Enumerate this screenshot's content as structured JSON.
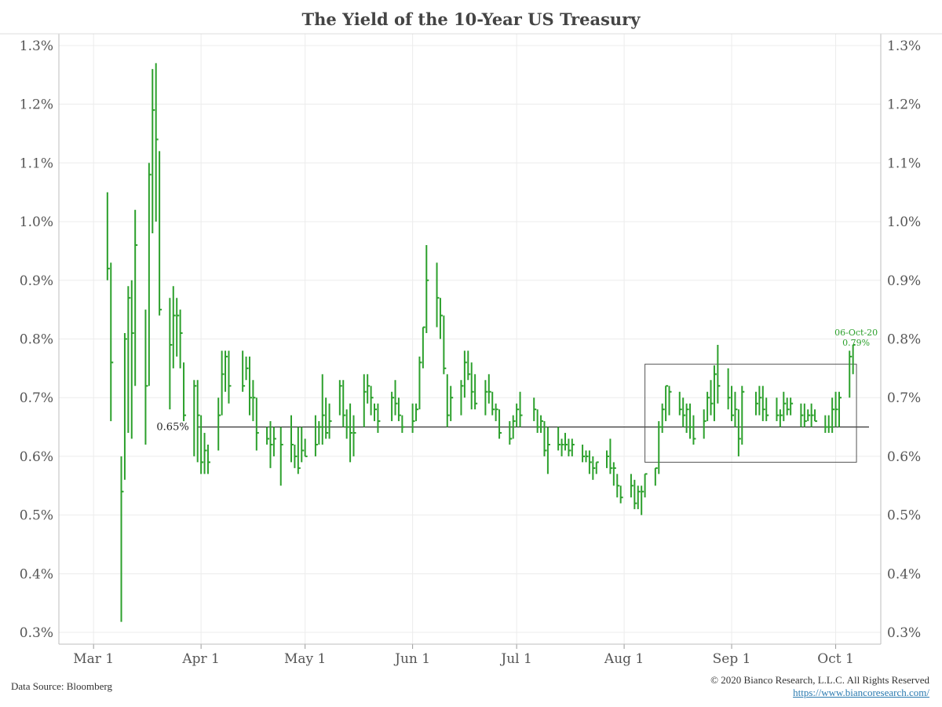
{
  "chart_data": {
    "type": "ohlc",
    "title": "The Yield of the 10-Year US Treasury",
    "source": "Data Source: Bloomberg",
    "copyright": "© 2020 Bianco Research, L.L.C. All Rights Reserved",
    "url": "https://www.biancoresearch.com/",
    "ylim": [
      0.28,
      1.32
    ],
    "yticks": [
      0.3,
      0.4,
      0.5,
      0.6,
      0.7,
      0.8,
      0.9,
      1.0,
      1.1,
      1.2,
      1.3
    ],
    "ytick_labels": [
      "0.3%",
      "0.4%",
      "0.5%",
      "0.6%",
      "0.7%",
      "0.8%",
      "0.9%",
      "1.0%",
      "1.1%",
      "1.2%",
      "1.3%"
    ],
    "xlim": [
      "2020-02-20",
      "2020-10-14"
    ],
    "xticks": [
      "2020-03-01",
      "2020-04-01",
      "2020-05-01",
      "2020-06-01",
      "2020-07-01",
      "2020-08-01",
      "2020-09-01",
      "2020-10-01"
    ],
    "xtick_labels": [
      "Mar 1",
      "Apr 1",
      "May 1",
      "Jun 1",
      "Jul 1",
      "Aug 1",
      "Sep 1",
      "Oct 1"
    ],
    "grid": true,
    "series_color": "#2ca02c",
    "reference_line": {
      "value": 0.65,
      "label": "0.65%",
      "from": "2020-03-31",
      "to": "2020-10-14"
    },
    "range_box": {
      "x0": "2020-08-07",
      "x1": "2020-10-07",
      "y0": 0.59,
      "y1": 0.757
    },
    "annotation": {
      "date_label": "06-Oct-20",
      "value_label": "0.79%",
      "x": "2020-10-06",
      "y": 0.79
    },
    "bars": [
      {
        "d": "2020-03-05",
        "h": 1.05,
        "l": 0.9,
        "c": 0.92
      },
      {
        "d": "2020-03-06",
        "h": 0.93,
        "l": 0.66,
        "c": 0.76
      },
      {
        "d": "2020-03-09",
        "h": 0.6,
        "l": 0.318,
        "c": 0.54
      },
      {
        "d": "2020-03-10",
        "h": 0.81,
        "l": 0.56,
        "c": 0.8
      },
      {
        "d": "2020-03-11",
        "h": 0.89,
        "l": 0.64,
        "c": 0.87
      },
      {
        "d": "2020-03-12",
        "h": 0.9,
        "l": 0.63,
        "c": 0.81
      },
      {
        "d": "2020-03-13",
        "h": 1.02,
        "l": 0.72,
        "c": 0.96
      },
      {
        "d": "2020-03-16",
        "h": 0.85,
        "l": 0.62,
        "c": 0.72
      },
      {
        "d": "2020-03-17",
        "h": 1.1,
        "l": 0.72,
        "c": 1.08
      },
      {
        "d": "2020-03-18",
        "h": 1.26,
        "l": 0.98,
        "c": 1.19
      },
      {
        "d": "2020-03-19",
        "h": 1.27,
        "l": 1.0,
        "c": 1.14
      },
      {
        "d": "2020-03-20",
        "h": 1.12,
        "l": 0.84,
        "c": 0.85
      },
      {
        "d": "2020-03-23",
        "h": 0.87,
        "l": 0.68,
        "c": 0.79
      },
      {
        "d": "2020-03-24",
        "h": 0.89,
        "l": 0.75,
        "c": 0.84
      },
      {
        "d": "2020-03-25",
        "h": 0.87,
        "l": 0.77,
        "c": 0.84
      },
      {
        "d": "2020-03-26",
        "h": 0.85,
        "l": 0.75,
        "c": 0.81
      },
      {
        "d": "2020-03-27",
        "h": 0.76,
        "l": 0.66,
        "c": 0.67
      },
      {
        "d": "2020-03-30",
        "h": 0.73,
        "l": 0.6,
        "c": 0.72
      },
      {
        "d": "2020-03-31",
        "h": 0.73,
        "l": 0.59,
        "c": 0.67
      },
      {
        "d": "2020-04-01",
        "h": 0.67,
        "l": 0.57,
        "c": 0.59
      },
      {
        "d": "2020-04-02",
        "h": 0.64,
        "l": 0.57,
        "c": 0.61
      },
      {
        "d": "2020-04-03",
        "h": 0.62,
        "l": 0.57,
        "c": 0.59
      },
      {
        "d": "2020-04-06",
        "h": 0.7,
        "l": 0.61,
        "c": 0.67
      },
      {
        "d": "2020-04-07",
        "h": 0.78,
        "l": 0.67,
        "c": 0.74
      },
      {
        "d": "2020-04-08",
        "h": 0.78,
        "l": 0.71,
        "c": 0.77
      },
      {
        "d": "2020-04-09",
        "h": 0.78,
        "l": 0.69,
        "c": 0.72
      },
      {
        "d": "2020-04-13",
        "h": 0.78,
        "l": 0.71,
        "c": 0.72
      },
      {
        "d": "2020-04-14",
        "h": 0.77,
        "l": 0.73,
        "c": 0.75
      },
      {
        "d": "2020-04-15",
        "h": 0.77,
        "l": 0.67,
        "c": 0.7
      },
      {
        "d": "2020-04-16",
        "h": 0.73,
        "l": 0.66,
        "c": 0.7
      },
      {
        "d": "2020-04-17",
        "h": 0.7,
        "l": 0.61,
        "c": 0.64
      },
      {
        "d": "2020-04-20",
        "h": 0.65,
        "l": 0.62,
        "c": 0.63
      },
      {
        "d": "2020-04-21",
        "h": 0.66,
        "l": 0.58,
        "c": 0.62
      },
      {
        "d": "2020-04-22",
        "h": 0.65,
        "l": 0.6,
        "c": 0.63
      },
      {
        "d": "2020-04-24",
        "h": 0.65,
        "l": 0.55,
        "c": 0.62
      },
      {
        "d": "2020-04-27",
        "h": 0.67,
        "l": 0.59,
        "c": 0.62
      },
      {
        "d": "2020-04-28",
        "h": 0.62,
        "l": 0.58,
        "c": 0.6
      },
      {
        "d": "2020-04-29",
        "h": 0.65,
        "l": 0.57,
        "c": 0.58
      },
      {
        "d": "2020-04-30",
        "h": 0.65,
        "l": 0.59,
        "c": 0.61
      },
      {
        "d": "2020-05-01",
        "h": 0.63,
        "l": 0.6,
        "c": 0.6
      },
      {
        "d": "2020-05-04",
        "h": 0.67,
        "l": 0.6,
        "c": 0.62
      },
      {
        "d": "2020-05-05",
        "h": 0.66,
        "l": 0.62,
        "c": 0.65
      },
      {
        "d": "2020-05-06",
        "h": 0.74,
        "l": 0.62,
        "c": 0.67
      },
      {
        "d": "2020-05-07",
        "h": 0.7,
        "l": 0.63,
        "c": 0.64
      },
      {
        "d": "2020-05-08",
        "h": 0.69,
        "l": 0.63,
        "c": 0.66
      },
      {
        "d": "2020-05-11",
        "h": 0.73,
        "l": 0.67,
        "c": 0.72
      },
      {
        "d": "2020-05-12",
        "h": 0.73,
        "l": 0.65,
        "c": 0.67
      },
      {
        "d": "2020-05-13",
        "h": 0.68,
        "l": 0.63,
        "c": 0.65
      },
      {
        "d": "2020-05-14",
        "h": 0.69,
        "l": 0.59,
        "c": 0.64
      },
      {
        "d": "2020-05-15",
        "h": 0.67,
        "l": 0.6,
        "c": 0.64
      },
      {
        "d": "2020-05-18",
        "h": 0.74,
        "l": 0.65,
        "c": 0.71
      },
      {
        "d": "2020-05-19",
        "h": 0.74,
        "l": 0.69,
        "c": 0.72
      },
      {
        "d": "2020-05-20",
        "h": 0.72,
        "l": 0.67,
        "c": 0.7
      },
      {
        "d": "2020-05-21",
        "h": 0.69,
        "l": 0.66,
        "c": 0.68
      },
      {
        "d": "2020-05-22",
        "h": 0.69,
        "l": 0.64,
        "c": 0.66
      },
      {
        "d": "2020-05-26",
        "h": 0.71,
        "l": 0.66,
        "c": 0.7
      },
      {
        "d": "2020-05-27",
        "h": 0.73,
        "l": 0.67,
        "c": 0.69
      },
      {
        "d": "2020-05-28",
        "h": 0.7,
        "l": 0.66,
        "c": 0.67
      },
      {
        "d": "2020-05-29",
        "h": 0.67,
        "l": 0.64,
        "c": 0.65
      },
      {
        "d": "2020-06-01",
        "h": 0.69,
        "l": 0.64,
        "c": 0.66
      },
      {
        "d": "2020-06-02",
        "h": 0.69,
        "l": 0.66,
        "c": 0.68
      },
      {
        "d": "2020-06-03",
        "h": 0.77,
        "l": 0.68,
        "c": 0.76
      },
      {
        "d": "2020-06-04",
        "h": 0.82,
        "l": 0.75,
        "c": 0.82
      },
      {
        "d": "2020-06-05",
        "h": 0.96,
        "l": 0.81,
        "c": 0.9
      },
      {
        "d": "2020-06-08",
        "h": 0.93,
        "l": 0.82,
        "c": 0.87
      },
      {
        "d": "2020-06-09",
        "h": 0.87,
        "l": 0.8,
        "c": 0.84
      },
      {
        "d": "2020-06-10",
        "h": 0.84,
        "l": 0.74,
        "c": 0.75
      },
      {
        "d": "2020-06-11",
        "h": 0.74,
        "l": 0.65,
        "c": 0.67
      },
      {
        "d": "2020-06-12",
        "h": 0.72,
        "l": 0.66,
        "c": 0.7
      },
      {
        "d": "2020-06-15",
        "h": 0.73,
        "l": 0.67,
        "c": 0.72
      },
      {
        "d": "2020-06-16",
        "h": 0.78,
        "l": 0.7,
        "c": 0.76
      },
      {
        "d": "2020-06-17",
        "h": 0.78,
        "l": 0.73,
        "c": 0.74
      },
      {
        "d": "2020-06-18",
        "h": 0.76,
        "l": 0.68,
        "c": 0.71
      },
      {
        "d": "2020-06-19",
        "h": 0.74,
        "l": 0.68,
        "c": 0.69
      },
      {
        "d": "2020-06-22",
        "h": 0.73,
        "l": 0.67,
        "c": 0.71
      },
      {
        "d": "2020-06-23",
        "h": 0.74,
        "l": 0.69,
        "c": 0.71
      },
      {
        "d": "2020-06-24",
        "h": 0.71,
        "l": 0.67,
        "c": 0.68
      },
      {
        "d": "2020-06-25",
        "h": 0.69,
        "l": 0.66,
        "c": 0.68
      },
      {
        "d": "2020-06-26",
        "h": 0.68,
        "l": 0.63,
        "c": 0.64
      },
      {
        "d": "2020-06-29",
        "h": 0.66,
        "l": 0.62,
        "c": 0.63
      },
      {
        "d": "2020-06-30",
        "h": 0.67,
        "l": 0.63,
        "c": 0.66
      },
      {
        "d": "2020-07-01",
        "h": 0.69,
        "l": 0.65,
        "c": 0.68
      },
      {
        "d": "2020-07-02",
        "h": 0.71,
        "l": 0.65,
        "c": 0.67
      },
      {
        "d": "2020-07-06",
        "h": 0.7,
        "l": 0.66,
        "c": 0.68
      },
      {
        "d": "2020-07-07",
        "h": 0.68,
        "l": 0.64,
        "c": 0.65
      },
      {
        "d": "2020-07-08",
        "h": 0.67,
        "l": 0.64,
        "c": 0.66
      },
      {
        "d": "2020-07-09",
        "h": 0.66,
        "l": 0.6,
        "c": 0.61
      },
      {
        "d": "2020-07-10",
        "h": 0.65,
        "l": 0.57,
        "c": 0.62
      },
      {
        "d": "2020-07-13",
        "h": 0.65,
        "l": 0.61,
        "c": 0.62
      },
      {
        "d": "2020-07-14",
        "h": 0.63,
        "l": 0.6,
        "c": 0.62
      },
      {
        "d": "2020-07-15",
        "h": 0.64,
        "l": 0.61,
        "c": 0.62
      },
      {
        "d": "2020-07-16",
        "h": 0.63,
        "l": 0.6,
        "c": 0.61
      },
      {
        "d": "2020-07-17",
        "h": 0.63,
        "l": 0.6,
        "c": 0.62
      },
      {
        "d": "2020-07-20",
        "h": 0.62,
        "l": 0.59,
        "c": 0.6
      },
      {
        "d": "2020-07-21",
        "h": 0.61,
        "l": 0.59,
        "c": 0.6
      },
      {
        "d": "2020-07-22",
        "h": 0.61,
        "l": 0.57,
        "c": 0.59
      },
      {
        "d": "2020-07-23",
        "h": 0.6,
        "l": 0.56,
        "c": 0.58
      },
      {
        "d": "2020-07-24",
        "h": 0.59,
        "l": 0.57,
        "c": 0.59
      },
      {
        "d": "2020-07-27",
        "h": 0.61,
        "l": 0.58,
        "c": 0.6
      },
      {
        "d": "2020-07-28",
        "h": 0.63,
        "l": 0.57,
        "c": 0.58
      },
      {
        "d": "2020-07-29",
        "h": 0.59,
        "l": 0.55,
        "c": 0.58
      },
      {
        "d": "2020-07-30",
        "h": 0.57,
        "l": 0.53,
        "c": 0.55
      },
      {
        "d": "2020-07-31",
        "h": 0.55,
        "l": 0.52,
        "c": 0.53
      },
      {
        "d": "2020-08-03",
        "h": 0.57,
        "l": 0.53,
        "c": 0.55
      },
      {
        "d": "2020-08-04",
        "h": 0.56,
        "l": 0.51,
        "c": 0.52
      },
      {
        "d": "2020-08-05",
        "h": 0.55,
        "l": 0.51,
        "c": 0.54
      },
      {
        "d": "2020-08-06",
        "h": 0.55,
        "l": 0.5,
        "c": 0.54
      },
      {
        "d": "2020-08-07",
        "h": 0.57,
        "l": 0.53,
        "c": 0.57
      },
      {
        "d": "2020-08-10",
        "h": 0.58,
        "l": 0.55,
        "c": 0.58
      },
      {
        "d": "2020-08-11",
        "h": 0.66,
        "l": 0.57,
        "c": 0.65
      },
      {
        "d": "2020-08-12",
        "h": 0.69,
        "l": 0.64,
        "c": 0.68
      },
      {
        "d": "2020-08-13",
        "h": 0.72,
        "l": 0.66,
        "c": 0.72
      },
      {
        "d": "2020-08-14",
        "h": 0.72,
        "l": 0.67,
        "c": 0.71
      },
      {
        "d": "2020-08-17",
        "h": 0.71,
        "l": 0.67,
        "c": 0.68
      },
      {
        "d": "2020-08-18",
        "h": 0.7,
        "l": 0.65,
        "c": 0.67
      },
      {
        "d": "2020-08-19",
        "h": 0.69,
        "l": 0.64,
        "c": 0.68
      },
      {
        "d": "2020-08-20",
        "h": 0.69,
        "l": 0.63,
        "c": 0.65
      },
      {
        "d": "2020-08-21",
        "h": 0.67,
        "l": 0.62,
        "c": 0.63
      },
      {
        "d": "2020-08-24",
        "h": 0.68,
        "l": 0.63,
        "c": 0.66
      },
      {
        "d": "2020-08-25",
        "h": 0.71,
        "l": 0.66,
        "c": 0.7
      },
      {
        "d": "2020-08-26",
        "h": 0.73,
        "l": 0.67,
        "c": 0.69
      },
      {
        "d": "2020-08-27",
        "h": 0.755,
        "l": 0.66,
        "c": 0.74
      },
      {
        "d": "2020-08-28",
        "h": 0.79,
        "l": 0.69,
        "c": 0.72
      },
      {
        "d": "2020-08-31",
        "h": 0.75,
        "l": 0.68,
        "c": 0.7
      },
      {
        "d": "2020-09-01",
        "h": 0.72,
        "l": 0.66,
        "c": 0.67
      },
      {
        "d": "2020-09-02",
        "h": 0.71,
        "l": 0.65,
        "c": 0.68
      },
      {
        "d": "2020-09-03",
        "h": 0.68,
        "l": 0.6,
        "c": 0.63
      },
      {
        "d": "2020-09-04",
        "h": 0.72,
        "l": 0.62,
        "c": 0.71
      },
      {
        "d": "2020-09-08",
        "h": 0.71,
        "l": 0.67,
        "c": 0.69
      },
      {
        "d": "2020-09-09",
        "h": 0.72,
        "l": 0.67,
        "c": 0.7
      },
      {
        "d": "2020-09-10",
        "h": 0.72,
        "l": 0.66,
        "c": 0.68
      },
      {
        "d": "2020-09-11",
        "h": 0.7,
        "l": 0.66,
        "c": 0.67
      },
      {
        "d": "2020-09-14",
        "h": 0.7,
        "l": 0.66,
        "c": 0.67
      },
      {
        "d": "2020-09-15",
        "h": 0.68,
        "l": 0.65,
        "c": 0.67
      },
      {
        "d": "2020-09-16",
        "h": 0.71,
        "l": 0.66,
        "c": 0.69
      },
      {
        "d": "2020-09-17",
        "h": 0.7,
        "l": 0.67,
        "c": 0.68
      },
      {
        "d": "2020-09-18",
        "h": 0.7,
        "l": 0.67,
        "c": 0.69
      },
      {
        "d": "2020-09-21",
        "h": 0.69,
        "l": 0.65,
        "c": 0.67
      },
      {
        "d": "2020-09-22",
        "h": 0.69,
        "l": 0.65,
        "c": 0.66
      },
      {
        "d": "2020-09-23",
        "h": 0.68,
        "l": 0.66,
        "c": 0.67
      },
      {
        "d": "2020-09-24",
        "h": 0.69,
        "l": 0.65,
        "c": 0.67
      },
      {
        "d": "2020-09-25",
        "h": 0.68,
        "l": 0.66,
        "c": 0.66
      },
      {
        "d": "2020-09-28",
        "h": 0.67,
        "l": 0.64,
        "c": 0.65
      },
      {
        "d": "2020-09-29",
        "h": 0.67,
        "l": 0.64,
        "c": 0.65
      },
      {
        "d": "2020-09-30",
        "h": 0.7,
        "l": 0.64,
        "c": 0.68
      },
      {
        "d": "2020-10-01",
        "h": 0.71,
        "l": 0.65,
        "c": 0.68
      },
      {
        "d": "2020-10-02",
        "h": 0.71,
        "l": 0.65,
        "c": 0.7
      },
      {
        "d": "2020-10-05",
        "h": 0.78,
        "l": 0.7,
        "c": 0.77
      },
      {
        "d": "2020-10-06",
        "h": 0.79,
        "l": 0.74,
        "c": 0.79
      }
    ]
  }
}
